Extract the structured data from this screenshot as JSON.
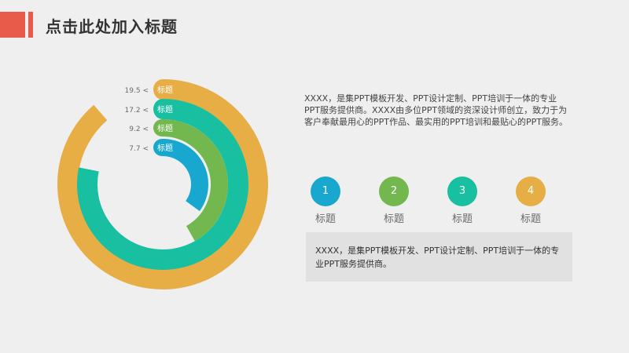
{
  "header": {
    "title": "点击此处加入标题",
    "accent_colors": [
      "#e85a4a",
      "#e85a4a"
    ]
  },
  "chart_data": {
    "type": "radial-bar",
    "categories": [
      "标题",
      "标题",
      "标题",
      "标题"
    ],
    "values": [
      19.5,
      17.2,
      9.2,
      7.7
    ],
    "value_labels": [
      "19.5 <",
      "17.2 <",
      "9.2 <",
      "7.7 <"
    ],
    "colors": [
      "#e7ae45",
      "#18bfa0",
      "#72b84e",
      "#18a8cf"
    ],
    "grid": false,
    "legend": "none"
  },
  "description": "XXXX，是集PPT模板开发、PPT设计定制、PPT培训于一体的专业PPT服务提供商。XXXX由多位PPT领域的资深设计师创立，致力于为客户奉献最用心的PPT作品、最实用的PPT培训和最贴心的PPT服务。",
  "steps": [
    {
      "number": "1",
      "label": "标题",
      "color": "#18a8cf"
    },
    {
      "number": "2",
      "label": "标题",
      "color": "#72b84e"
    },
    {
      "number": "3",
      "label": "标题",
      "color": "#18bfa0"
    },
    {
      "number": "4",
      "label": "标题",
      "color": "#e7ae45"
    }
  ],
  "info_box": {
    "text": "XXXX，是集PPT模板开发、PPT设计定制、PPT培训于一体的专业PPT服务提供商。"
  }
}
